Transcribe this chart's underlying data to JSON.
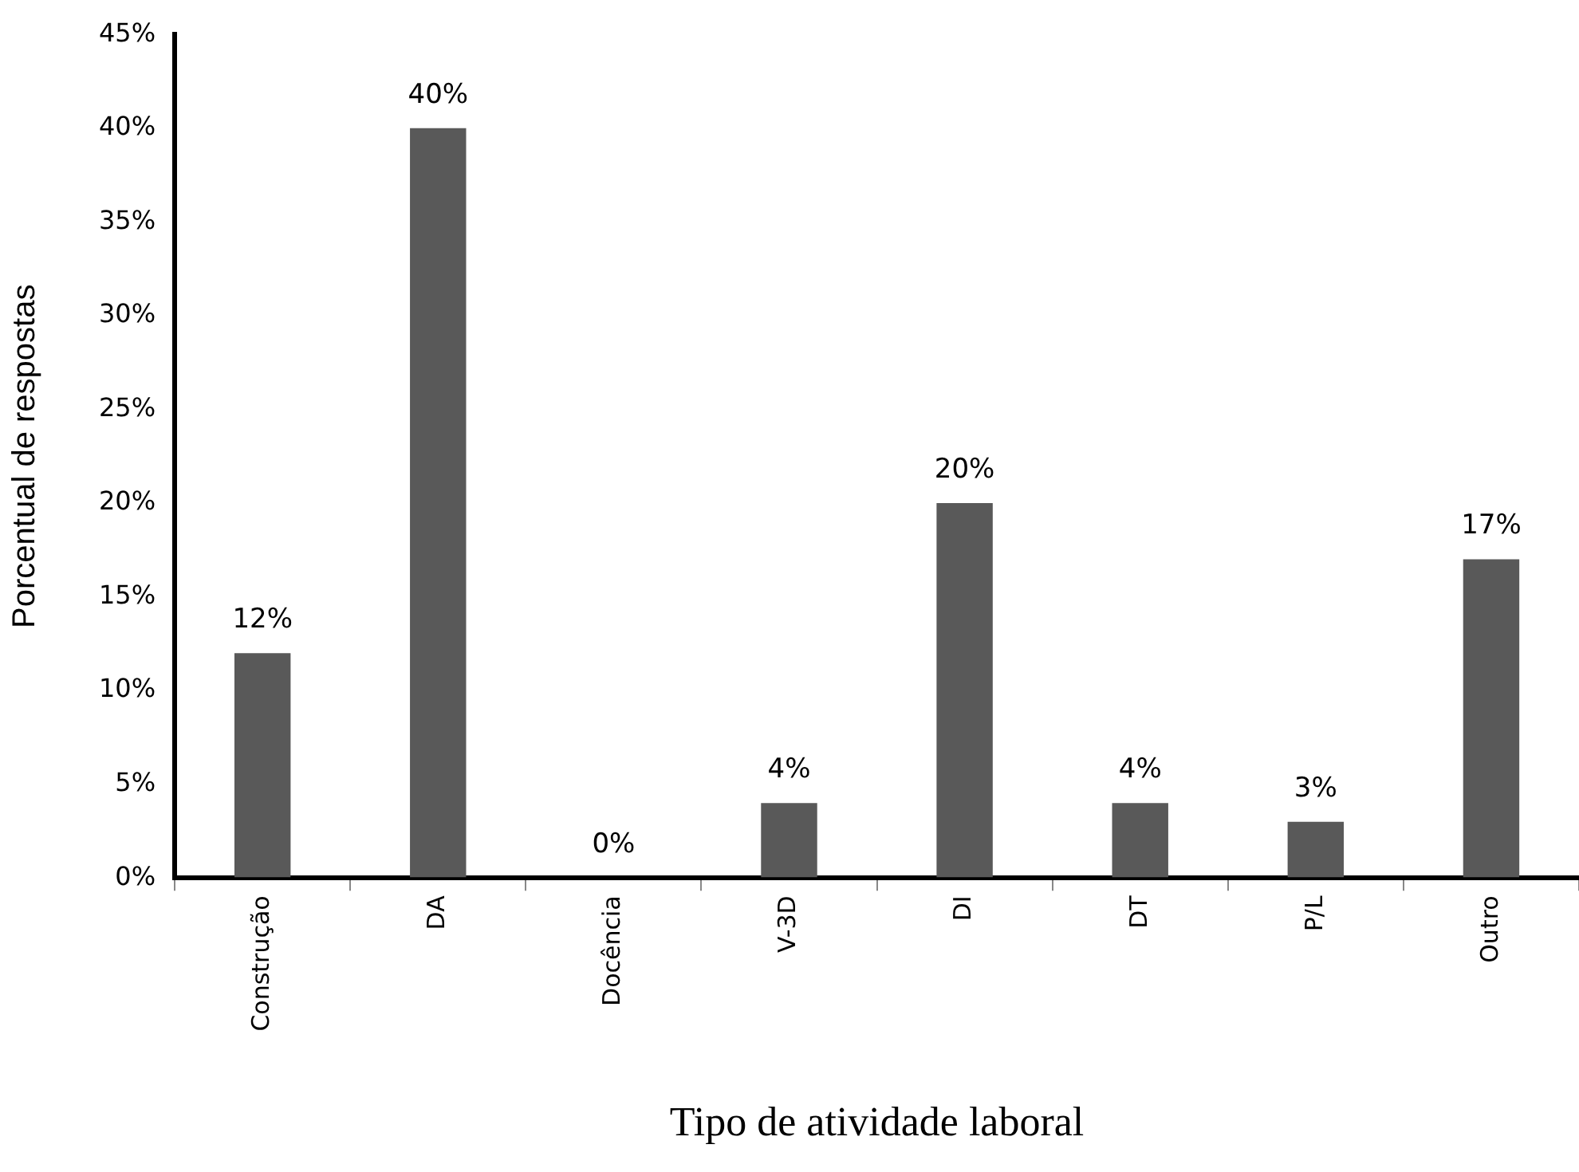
{
  "chart_data": {
    "type": "bar",
    "xlabel": "Tipo de atividade laboral",
    "ylabel": "Porcentual de respostas",
    "categories": [
      "Construção",
      "DA",
      "Docência",
      "V-3D",
      "DI",
      "DT",
      "P/L",
      "Outro"
    ],
    "values": [
      12,
      40,
      0,
      4,
      20,
      4,
      3,
      17
    ],
    "value_labels": [
      "12%",
      "40%",
      "0%",
      "4%",
      "20%",
      "4%",
      "3%",
      "17%"
    ],
    "color": "#595959",
    "ylim": [
      0,
      45
    ],
    "yticks": [
      {
        "value": 0,
        "label": "0%"
      },
      {
        "value": 5,
        "label": "5%"
      },
      {
        "value": 10,
        "label": "10%"
      },
      {
        "value": 15,
        "label": "15%"
      },
      {
        "value": 20,
        "label": "20%"
      },
      {
        "value": 25,
        "label": "25%"
      },
      {
        "value": 30,
        "label": "30%"
      },
      {
        "value": 35,
        "label": "35%"
      },
      {
        "value": 40,
        "label": "40%"
      },
      {
        "value": 45,
        "label": "45%"
      }
    ],
    "grid": false,
    "legend": false
  }
}
